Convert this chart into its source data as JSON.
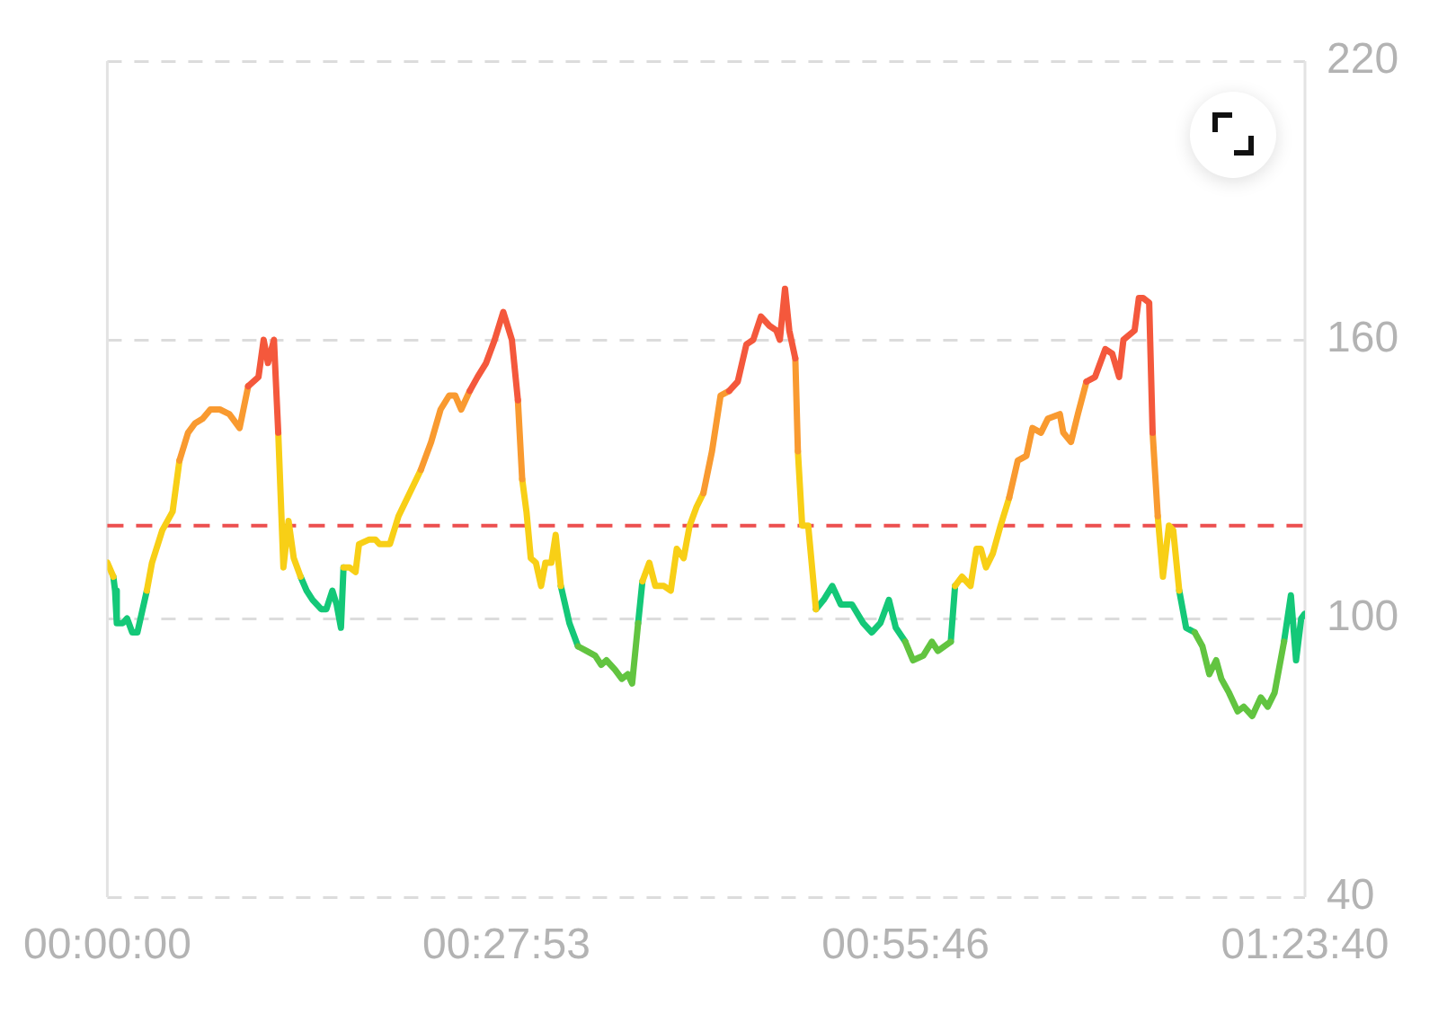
{
  "chart_data": {
    "type": "line",
    "series": [
      {
        "color": "#f4583c",
        "x": [
          0.164,
          0.176,
          0.182,
          0.187,
          0.194,
          0.199,
          0.205,
          0.422,
          0.431,
          0.441,
          0.451,
          0.461,
          0.471,
          0.478,
          0.483,
          0.724,
          0.734,
          0.744,
          0.752,
          0.761,
          0.771,
          0.779,
          0.783,
          0.789,
          0.794,
          0.801,
          0.804,
          1.14,
          1.15,
          1.162,
          1.17,
          1.178,
          1.183,
          1.196,
          1.201,
          1.206,
          1.213,
          1.217
        ],
        "values": [
          150,
          152,
          160,
          155,
          160,
          140,
          null,
          149,
          152,
          155,
          160,
          166,
          160,
          147,
          null,
          149,
          151,
          159,
          160,
          165,
          163,
          162,
          160,
          171,
          162,
          156,
          null,
          151,
          152,
          158,
          157,
          152,
          160,
          162,
          169,
          169,
          168,
          140
        ]
      },
      {
        "color": "#f99a30",
        "x": [
          0.084,
          0.094,
          0.102,
          0.111,
          0.12,
          0.131,
          0.142,
          0.154,
          0.164,
          0.176,
          0.365,
          0.377,
          0.388,
          0.398,
          0.405,
          0.412,
          0.422,
          0.431,
          0.478,
          0.483,
          0.488,
          0.694,
          0.704,
          0.714,
          0.724,
          0.734,
          0.801,
          0.804,
          0.809,
          1.05,
          1.06,
          1.07,
          1.077,
          1.087,
          1.095,
          1.109,
          1.113,
          1.122,
          1.13,
          1.14,
          1.15,
          1.217,
          1.223
        ],
        "values": [
          134,
          140,
          142,
          143,
          145,
          145,
          144,
          141,
          150,
          null,
          132,
          138,
          145,
          148,
          148,
          145,
          149,
          null,
          147,
          130,
          null,
          127,
          136,
          148,
          149,
          null,
          156,
          136,
          null,
          126,
          134,
          135,
          141,
          140,
          143,
          144,
          140,
          138,
          144,
          151,
          null,
          140,
          122
        ]
      },
      {
        "color": "#f8cf16",
        "x": [
          0,
          0.007,
          0.009,
          0.046,
          0.052,
          0.064,
          0.076,
          0.084,
          0.094,
          0.199,
          0.205,
          0.211,
          0.217,
          0.225,
          0.232,
          0.275,
          0.282,
          0.289,
          0.293,
          0.305,
          0.312,
          0.317,
          0.329,
          0.339,
          0.352,
          0.365,
          0.377,
          0.483,
          0.488,
          0.493,
          0.499,
          0.505,
          0.51,
          0.517,
          0.522,
          0.528,
          0.538,
          0.623,
          0.631,
          0.638,
          0.648,
          0.656,
          0.663,
          0.671,
          0.678,
          0.686,
          0.694,
          0.704,
          0.804,
          0.809,
          0.816,
          0.825,
          0.834,
          0.987,
          0.995,
          1.005,
          1.012,
          1.017,
          1.023,
          1.031,
          1.04,
          1.05,
          1.06,
          1.223,
          1.229,
          1.236,
          1.241,
          1.248
        ],
        "values": [
          112,
          109,
          null,
          106,
          112,
          119,
          123,
          134,
          null,
          140,
          111,
          121,
          113,
          109,
          null,
          111,
          111,
          110,
          116,
          117,
          117,
          116,
          116,
          122,
          127,
          132,
          null,
          130,
          123,
          113,
          112,
          107,
          112,
          112,
          118,
          107,
          null,
          108,
          112,
          107,
          107,
          106,
          115,
          113,
          120,
          124,
          127,
          null,
          136,
          120,
          120,
          102,
          null,
          107,
          109,
          107,
          115,
          115,
          111,
          114,
          120,
          126,
          null,
          122,
          109,
          120,
          119,
          106
        ]
      },
      {
        "color": "#62c440",
        "x": [
          0.548,
          0.558,
          0.568,
          0.575,
          0.581,
          0.591,
          0.599,
          0.606,
          0.611,
          0.618,
          0.623,
          0.929,
          0.938,
          0.95,
          0.96,
          0.967,
          0.982,
          0.987,
          1.266,
          1.275,
          1.283,
          1.291,
          1.297,
          1.306,
          1.316,
          1.323,
          1.333,
          1.343,
          1.351,
          1.359,
          1.37
        ],
        "values": [
          94,
          93,
          92,
          90,
          91,
          89,
          87,
          88,
          86,
          99,
          null,
          95,
          91,
          92,
          95,
          93,
          95,
          null,
          97,
          94,
          88,
          91,
          87,
          84,
          80,
          81,
          79,
          83,
          81,
          84,
          95
        ]
      },
      {
        "color": "#14c878",
        "x": [
          0.007,
          0.009,
          0.011,
          0.018,
          0.023,
          0.029,
          0.035,
          0.046,
          0.052,
          0.225,
          0.232,
          0.239,
          0.249,
          0.255,
          0.262,
          0.267,
          0.272,
          0.275,
          0.282,
          0.528,
          0.538,
          0.548,
          0.558,
          0.618,
          0.623,
          0.631,
          0.825,
          0.834,
          0.844,
          0.854,
          0.867,
          0.88,
          0.89,
          0.9,
          0.91,
          0.918,
          0.929,
          0.938,
          0.982,
          0.987,
          0.995,
          1.248,
          1.256,
          1.266,
          1.275,
          1.37,
          1.378,
          1.384,
          1.39,
          1.394
        ],
        "values": [
          109,
          106,
          99,
          99,
          100,
          97,
          97,
          106,
          null,
          109,
          106,
          104,
          102,
          102,
          106,
          103,
          98,
          111,
          null,
          107,
          99,
          94,
          null,
          99,
          108,
          null,
          102,
          104,
          107,
          103,
          103,
          99,
          97,
          99,
          104,
          98,
          95,
          null,
          95,
          107,
          null,
          106,
          98,
          97,
          null,
          95,
          105,
          91,
          100,
          101
        ]
      }
    ],
    "xlim": [
      0,
      1.3944
    ],
    "xticks": [
      {
        "value": 0,
        "label": "00:00:00"
      },
      {
        "value": 0.4647,
        "label": "00:27:53"
      },
      {
        "value": 0.9294,
        "label": "00:55:46"
      },
      {
        "value": 1.3944,
        "label": "01:23:40"
      }
    ],
    "ylim": [
      40,
      220
    ],
    "yticks": [
      40,
      100,
      160,
      220
    ],
    "grid": "y",
    "marker": "none",
    "ref_lines": [
      {
        "axis": "y",
        "value": 120,
        "color": "#ec4f4f",
        "line_style": "dashed"
      }
    ]
  }
}
